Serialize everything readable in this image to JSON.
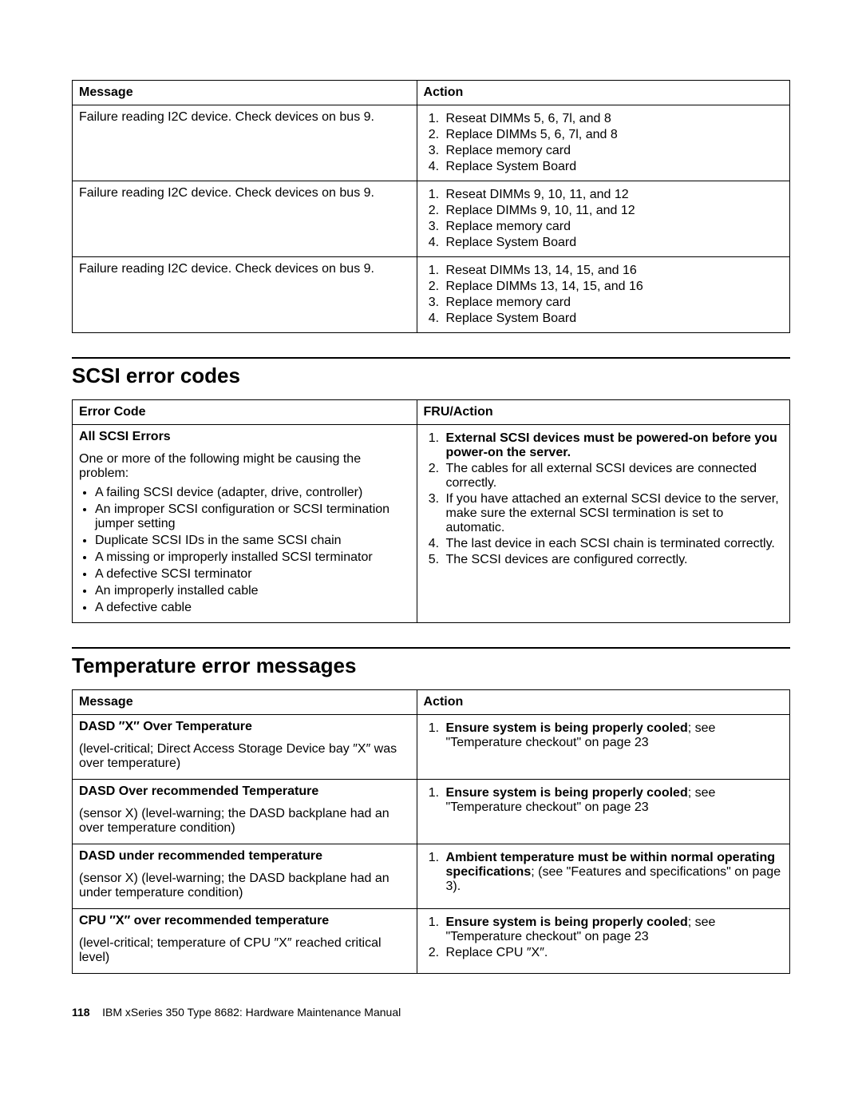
{
  "table1": {
    "headers": [
      "Message",
      "Action"
    ],
    "rows": [
      {
        "message": "Failure reading I2C device. Check devices on bus 9.",
        "actions": [
          "Reseat DIMMs 5, 6, 7l, and 8",
          "Replace DIMMs 5, 6, 7l, and 8",
          "Replace memory card",
          "Replace System Board"
        ]
      },
      {
        "message": "Failure reading I2C device. Check devices on bus 9.",
        "actions": [
          "Reseat DIMMs 9, 10, 11, and 12",
          "Replace DIMMs 9, 10, 11, and 12",
          "Replace memory card",
          "Replace System Board"
        ]
      },
      {
        "message": "Failure reading I2C device. Check devices on bus 9.",
        "actions": [
          "Reseat DIMMs 13, 14, 15, and 16",
          "Replace DIMMs 13, 14, 15, and 16",
          "Replace memory card",
          "Replace System Board"
        ]
      }
    ]
  },
  "section_scsi": {
    "heading": "SCSI error codes",
    "headers": [
      "Error Code",
      "FRU/Action"
    ],
    "left": {
      "title": "All SCSI Errors",
      "intro": "One or more of the following might be causing the problem:",
      "bullets": [
        "A failing SCSI device (adapter, drive, controller)",
        "An improper SCSI configuration or SCSI termination jumper setting",
        "Duplicate SCSI IDs in the same SCSI chain",
        "A missing or improperly installed SCSI terminator",
        "A defective SCSI terminator",
        "An improperly installed cable",
        "A defective cable"
      ]
    },
    "right": [
      {
        "bold": "External SCSI devices must be powered-on before you power-on the server.",
        "rest": ""
      },
      {
        "bold": "",
        "rest": "The cables for all external SCSI devices are connected correctly."
      },
      {
        "bold": "",
        "rest": "If you have attached an external SCSI device to the server, make sure the external SCSI termination is set to automatic."
      },
      {
        "bold": "",
        "rest": "The last device in each SCSI chain is terminated correctly."
      },
      {
        "bold": "",
        "rest": "The SCSI devices are configured correctly."
      }
    ]
  },
  "section_temp": {
    "heading": "Temperature error messages",
    "headers": [
      "Message",
      "Action"
    ],
    "rows": [
      {
        "title": "DASD ″X″ Over Temperature",
        "sub": "(level-critical; Direct Access Storage Device bay ″X″ was over temperature)",
        "actions": [
          {
            "bold": "Ensure system is being properly cooled",
            "rest": "; see \"Temperature checkout\" on page 23"
          }
        ]
      },
      {
        "title": "DASD Over recommended Temperature",
        "sub": "(sensor X) (level-warning; the DASD backplane had an over temperature condition)",
        "actions": [
          {
            "bold": "Ensure system is being properly cooled",
            "rest": "; see \"Temperature checkout\" on page 23"
          }
        ]
      },
      {
        "title": "DASD under recommended temperature",
        "sub": "(sensor X) (level-warning; the DASD backplane had an under temperature condition)",
        "actions": [
          {
            "bold": "Ambient temperature must be within normal operating specifications",
            "rest": "; (see \"Features and specifications\" on page 3)."
          }
        ]
      },
      {
        "title": "CPU ″X″ over recommended temperature",
        "sub": "(level-critical; temperature of CPU ″X″ reached critical level)",
        "actions": [
          {
            "bold": "Ensure system is being properly cooled",
            "rest": "; see \"Temperature checkout\" on page 23"
          },
          {
            "bold": "",
            "rest": "Replace CPU ″X″."
          }
        ]
      }
    ]
  },
  "footer": {
    "page": "118",
    "text": "IBM xSeries 350 Type 8682: Hardware Maintenance Manual"
  },
  "layout": {
    "col_widths_pct": [
      48,
      52
    ],
    "colors": {
      "text": "#000000",
      "bg": "#ffffff",
      "border": "#000000"
    },
    "fontsizes": {
      "body": 16,
      "heading": 26,
      "footer": 14
    }
  }
}
